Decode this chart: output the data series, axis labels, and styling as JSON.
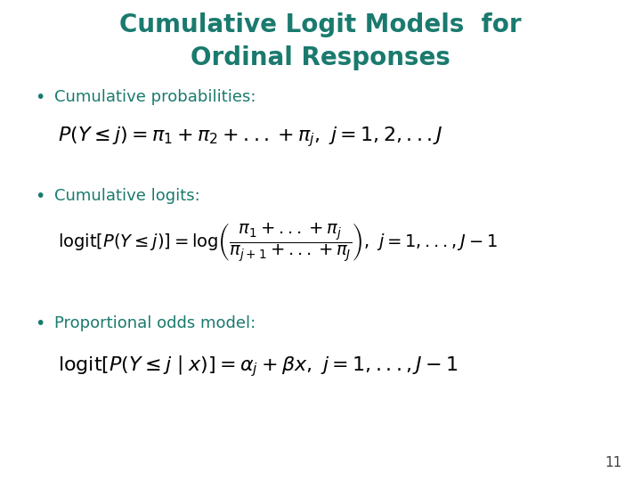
{
  "title_line1": "Cumulative Logit Models  for",
  "title_line2": "Ordinal Responses",
  "title_color": "#1A7A6E",
  "bullet_color": "#1A7A6E",
  "bullet1": "Cumulative probabilities:",
  "bullet2": "Cumulative logits:",
  "bullet3": "Proportional odds model:",
  "page_number": "11",
  "bg_color": "#FFFFFF",
  "formula_color": "#000000",
  "title_fontsize": 20,
  "bullet_fontsize": 13,
  "formula_fontsize": 13
}
